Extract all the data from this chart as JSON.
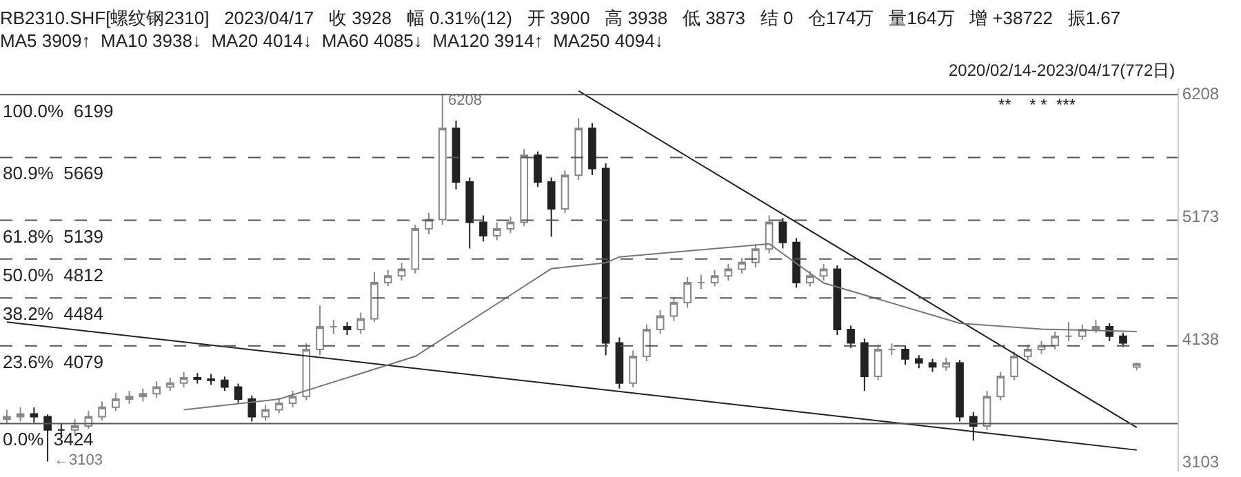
{
  "chart_data": {
    "type": "candlestick",
    "title": "RB2310.SHF[螺纹钢2310]   2023/04/17   收 3928   幅 0.31%(12)   开 3900   高 3938   低 3873   结 0   仓174万   量164万   增 +38722   振1.67",
    "subtitle": "MA5 3909↑  MA10 3938↓  MA20 4014↓  MA60 4085↓  MA120 3914↑  MA250 4094↓",
    "categories": [
      null,
      null,
      null,
      null,
      null,
      null,
      null,
      null,
      null,
      null,
      null,
      null,
      null,
      null,
      null,
      null,
      null,
      null,
      null,
      null,
      null,
      null,
      null,
      null,
      null,
      null,
      null,
      null,
      null,
      null,
      null,
      null,
      null,
      null,
      null,
      null,
      null,
      null,
      null,
      null,
      null,
      null,
      null,
      null,
      null,
      null,
      null,
      null,
      null,
      null,
      null,
      null,
      null,
      null,
      null,
      null,
      null,
      null,
      null,
      null,
      null,
      null,
      null,
      null,
      null,
      null,
      null,
      null,
      null,
      null,
      null,
      null,
      null,
      null,
      null,
      null,
      null,
      null,
      null,
      null,
      null,
      null,
      null,
      null
    ],
    "ohlc": [
      [
        3460,
        3540,
        3420,
        3482
      ],
      [
        3482,
        3560,
        3440,
        3505
      ],
      [
        3505,
        3560,
        3430,
        3482
      ],
      [
        3482,
        3500,
        3103,
        3369
      ],
      [
        3369,
        3420,
        3300,
        3369
      ],
      [
        3369,
        3460,
        3330,
        3403
      ],
      [
        3403,
        3530,
        3380,
        3482
      ],
      [
        3482,
        3610,
        3450,
        3562
      ],
      [
        3562,
        3680,
        3530,
        3629
      ],
      [
        3629,
        3700,
        3590,
        3652
      ],
      [
        3652,
        3720,
        3610,
        3675
      ],
      [
        3675,
        3780,
        3640,
        3731
      ],
      [
        3731,
        3810,
        3700,
        3765
      ],
      [
        3765,
        3860,
        3730,
        3810
      ],
      [
        3810,
        3850,
        3760,
        3799
      ],
      [
        3799,
        3840,
        3750,
        3788
      ],
      [
        3788,
        3820,
        3700,
        3731
      ],
      [
        3731,
        3760,
        3600,
        3629
      ],
      [
        3629,
        3660,
        3440,
        3482
      ],
      [
        3482,
        3580,
        3450,
        3539
      ],
      [
        3539,
        3640,
        3510,
        3595
      ],
      [
        3595,
        3700,
        3560,
        3652
      ],
      [
        3652,
        4100,
        3620,
        4048
      ],
      [
        4048,
        4420,
        4000,
        4240
      ],
      [
        4240,
        4300,
        4180,
        4240
      ],
      [
        4240,
        4280,
        4170,
        4217
      ],
      [
        4217,
        4360,
        4180,
        4308
      ],
      [
        4308,
        4700,
        4280,
        4613
      ],
      [
        4613,
        4720,
        4580,
        4670
      ],
      [
        4670,
        4780,
        4630,
        4726
      ],
      [
        4726,
        5100,
        4690,
        5066
      ],
      [
        5066,
        5200,
        5020,
        5145
      ],
      [
        5145,
        6208,
        5100,
        5914
      ],
      [
        5914,
        5980,
        5400,
        5462
      ],
      [
        5462,
        5500,
        4900,
        5122
      ],
      [
        5122,
        5180,
        4960,
        5009
      ],
      [
        5009,
        5120,
        4970,
        5066
      ],
      [
        5066,
        5170,
        5030,
        5122
      ],
      [
        5122,
        5740,
        5090,
        5688
      ],
      [
        5688,
        5720,
        5420,
        5462
      ],
      [
        5462,
        5500,
        5000,
        5235
      ],
      [
        5235,
        5560,
        5200,
        5518
      ],
      [
        5518,
        6000,
        5480,
        5914
      ],
      [
        5914,
        5960,
        5520,
        5575
      ],
      [
        5575,
        5620,
        4000,
        4104
      ],
      [
        4104,
        4150,
        3720,
        3765
      ],
      [
        3765,
        4040,
        3730,
        3991
      ],
      [
        3991,
        4260,
        3950,
        4217
      ],
      [
        4217,
        4380,
        4180,
        4330
      ],
      [
        4330,
        4490,
        4290,
        4444
      ],
      [
        4444,
        4660,
        4400,
        4613
      ],
      [
        4613,
        4680,
        4560,
        4613
      ],
      [
        4613,
        4720,
        4580,
        4670
      ],
      [
        4670,
        4770,
        4630,
        4726
      ],
      [
        4726,
        4820,
        4690,
        4783
      ],
      [
        4783,
        4940,
        4740,
        4896
      ],
      [
        4896,
        5180,
        4860,
        5122
      ],
      [
        5122,
        5160,
        4900,
        4952
      ],
      [
        4952,
        4990,
        4570,
        4613
      ],
      [
        4613,
        4710,
        4580,
        4670
      ],
      [
        4670,
        4770,
        4630,
        4726
      ],
      [
        4726,
        4760,
        4170,
        4217
      ],
      [
        4217,
        4250,
        4060,
        4104
      ],
      [
        4104,
        4140,
        3700,
        3822
      ],
      [
        3822,
        4090,
        3790,
        4048
      ],
      [
        4048,
        4100,
        4000,
        4048
      ],
      [
        4048,
        4080,
        3920,
        3969
      ],
      [
        3969,
        4000,
        3890,
        3935
      ],
      [
        3935,
        3970,
        3860,
        3901
      ],
      [
        3901,
        3980,
        3870,
        3935
      ],
      [
        3935,
        3960,
        3440,
        3482
      ],
      [
        3482,
        3520,
        3279,
        3403
      ],
      [
        3403,
        3700,
        3370,
        3652
      ],
      [
        3652,
        3860,
        3620,
        3822
      ],
      [
        3822,
        4030,
        3790,
        3991
      ],
      [
        3991,
        4090,
        3960,
        4048
      ],
      [
        4048,
        4120,
        4010,
        4082
      ],
      [
        4082,
        4200,
        4050,
        4161
      ],
      [
        4161,
        4280,
        4120,
        4161
      ],
      [
        4161,
        4260,
        4130,
        4217
      ],
      [
        4217,
        4300,
        4190,
        4240
      ],
      [
        4240,
        4270,
        4120,
        4161
      ],
      [
        4161,
        4190,
        4070,
        4104
      ],
      [
        3900,
        3938,
        3873,
        3928
      ]
    ],
    "series": [
      {
        "type": "line",
        "color": "#222222",
        "values": [
          null,
          null,
          null,
          null,
          null,
          null,
          null,
          null,
          null,
          null,
          null,
          null,
          null,
          null,
          null,
          null,
          null,
          null,
          null,
          null,
          null,
          null,
          null,
          null,
          null,
          null,
          null,
          null,
          null,
          null,
          null,
          null,
          null,
          null,
          null,
          null,
          null,
          null,
          null,
          null,
          null,
          null,
          6230,
          null,
          null,
          null,
          null,
          null,
          null,
          null,
          null,
          null,
          null,
          null,
          null,
          null,
          null,
          null,
          null,
          null,
          null,
          null,
          null,
          null,
          null,
          null,
          null,
          null,
          null,
          null,
          null,
          null,
          null,
          null,
          null,
          null,
          null,
          null,
          null,
          null,
          null,
          null,
          null,
          3390
        ]
      },
      {
        "type": "line",
        "color": "#222222",
        "values": [
          4280,
          null,
          null,
          null,
          null,
          null,
          null,
          null,
          null,
          null,
          null,
          null,
          null,
          null,
          null,
          null,
          null,
          null,
          null,
          null,
          null,
          null,
          null,
          null,
          null,
          null,
          null,
          null,
          null,
          null,
          null,
          null,
          null,
          null,
          null,
          null,
          null,
          null,
          null,
          null,
          null,
          null,
          null,
          null,
          null,
          null,
          null,
          null,
          null,
          null,
          null,
          null,
          null,
          null,
          null,
          null,
          null,
          null,
          null,
          null,
          null,
          null,
          null,
          null,
          null,
          null,
          null,
          null,
          null,
          null,
          null,
          null,
          null,
          null,
          null,
          null,
          null,
          null,
          null,
          null,
          null,
          null,
          null,
          3200
        ]
      },
      {
        "type": "line",
        "color": "#777777",
        "values": [
          null,
          null,
          null,
          null,
          null,
          null,
          null,
          null,
          null,
          null,
          null,
          null,
          null,
          3540,
          null,
          null,
          null,
          null,
          null,
          null,
          3630,
          null,
          null,
          null,
          null,
          null,
          null,
          null,
          null,
          null,
          3990,
          null,
          null,
          null,
          null,
          null,
          null,
          null,
          null,
          null,
          4730,
          null,
          null,
          null,
          4780,
          4830,
          null,
          null,
          null,
          null,
          null,
          null,
          null,
          null,
          null,
          null,
          4940,
          null,
          null,
          null,
          4610,
          null,
          null,
          null,
          null,
          null,
          null,
          null,
          null,
          null,
          4270,
          null,
          null,
          null,
          null,
          null,
          4220,
          null,
          null,
          null,
          null,
          null,
          null,
          4200
        ]
      }
    ],
    "ylim": [
      3019,
      6253
    ],
    "yticks": [
      3103,
      4138,
      5173,
      6208
    ],
    "tick_labels": "y",
    "grid": false,
    "ref_lines": [
      {
        "axis": "y",
        "value": 6199,
        "label": "100.0%  6199",
        "line_style": "solid"
      },
      {
        "axis": "y",
        "value": 5669,
        "label": "80.9%  5669",
        "line_style": "dashed"
      },
      {
        "axis": "y",
        "value": 5139,
        "label": "61.8%  5139",
        "line_style": "dashed"
      },
      {
        "axis": "y",
        "value": 4812,
        "label": "50.0%  4812",
        "line_style": "dashed"
      },
      {
        "axis": "y",
        "value": 4484,
        "label": "38.2%  4484",
        "line_style": "dashed"
      },
      {
        "axis": "y",
        "value": 4079,
        "label": "23.6%  4079",
        "line_style": "dashed"
      },
      {
        "axis": "y",
        "value": 3424,
        "label": "0.0%  3424",
        "line_style": "solid"
      }
    ],
    "annotations": [
      "2020/02/14-2023/04/17(772日)",
      "**    * *  ***",
      "6208",
      "←3103"
    ]
  }
}
